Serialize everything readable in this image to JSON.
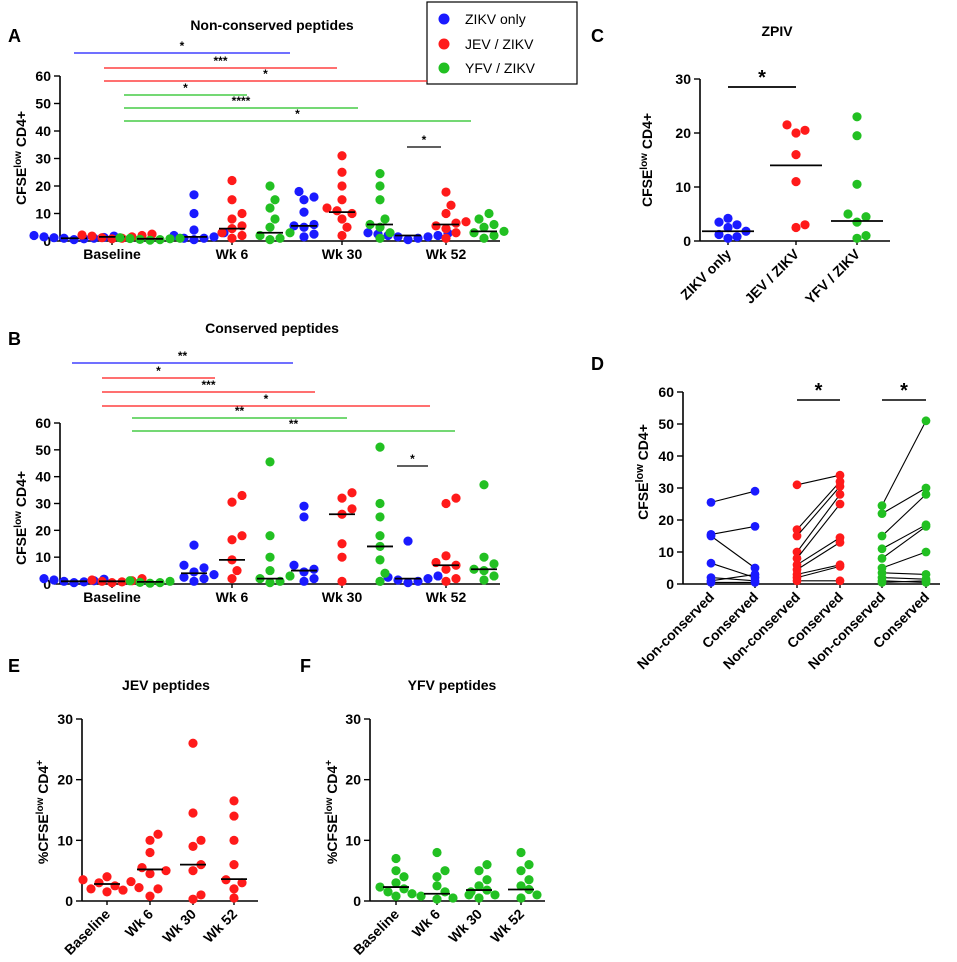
{
  "colors": {
    "ZIKV": "#1a1aff",
    "JEV": "#ff1a1a",
    "YFV": "#22c022",
    "black": "#000000"
  },
  "legend": {
    "items": [
      {
        "key": "ZIKV",
        "label": "ZIKV only"
      },
      {
        "key": "JEV",
        "label": "JEV / ZIKV"
      },
      {
        "key": "YFV",
        "label": "YFV / ZIKV"
      }
    ]
  },
  "panels": {
    "A": {
      "letter": "A",
      "title": "Non-conserved peptides",
      "ylabel_pre": "CFSE",
      "ylabel_sup": "low",
      "ylabel_post": " CD4+"
    },
    "B": {
      "letter": "B",
      "title": "Conserved peptides",
      "ylabel_pre": "CFSE",
      "ylabel_sup": "low",
      "ylabel_post": " CD4+"
    },
    "C": {
      "letter": "C",
      "title": "ZPIV",
      "ylabel_pre": "CFSE",
      "ylabel_sup": "low",
      "ylabel_post": " CD4+"
    },
    "D": {
      "letter": "D",
      "title": "",
      "ylabel_pre": "CFSE",
      "ylabel_sup": "low",
      "ylabel_post": " CD4+"
    },
    "E": {
      "letter": "E",
      "title": "JEV peptides",
      "ylabel_pre": "%CFSE",
      "ylabel_sup": "low",
      "ylabel_post": " CD4",
      "ylabel_sup2": "+"
    },
    "F": {
      "letter": "F",
      "title": "YFV peptides",
      "ylabel_pre": "%CFSE",
      "ylabel_sup": "low",
      "ylabel_post": " CD4",
      "ylabel_sup2": "+"
    }
  },
  "chart_data": [
    {
      "id": "A",
      "type": "scatter",
      "title": "Non-conserved peptides",
      "ylabel": "CFSElow CD4+",
      "ylim": [
        0,
        60
      ],
      "yticks": [
        0,
        10,
        20,
        30,
        40,
        50,
        60
      ],
      "categories": [
        "Baseline",
        "Wk 6",
        "Wk 30",
        "Wk 52"
      ],
      "series": [
        {
          "name": "ZIKV only",
          "key": "ZIKV",
          "medians": [
            1.0,
            1.5,
            5.5,
            2.0
          ],
          "values": [
            [
              0.5,
              1.0,
              1.2,
              1.5,
              2.0,
              0.8,
              1.8,
              1.0,
              1.3
            ],
            [
              0.5,
              1.0,
              1.5,
              2.0,
              3.0,
              4.0,
              1.0,
              10.0,
              16.8
            ],
            [
              1.5,
              2.5,
              5.0,
              5.5,
              10.5,
              15.0,
              16.0,
              18.0,
              6.0
            ],
            [
              0.5,
              1.0,
              1.5,
              2.0,
              2.5,
              3.0,
              1.5,
              2.0,
              2.8
            ]
          ]
        },
        {
          "name": "JEV / ZIKV",
          "key": "JEV",
          "medians": [
            1.5,
            4.5,
            10.5,
            6.0
          ],
          "values": [
            [
              0.8,
              1.2,
              1.5,
              2.0,
              2.5,
              1.0,
              1.8,
              2.2
            ],
            [
              1.0,
              2.0,
              3.0,
              4.5,
              5.5,
              8.0,
              10.0,
              15.0,
              22.0
            ],
            [
              2.0,
              5.0,
              8.0,
              10.0,
              11.0,
              12.0,
              15.0,
              20.0,
              25.0,
              31.0
            ],
            [
              1.0,
              3.0,
              4.5,
              5.5,
              6.5,
              7.0,
              10.0,
              13.0,
              17.8
            ]
          ]
        },
        {
          "name": "YFV / ZIKV",
          "key": "YFV",
          "medians": [
            0.8,
            3.0,
            6.0,
            3.5
          ],
          "values": [
            [
              0.3,
              0.6,
              0.8,
              1.0,
              1.2,
              0.5,
              0.9
            ],
            [
              0.5,
              1.0,
              2.0,
              3.0,
              5.0,
              8.0,
              12.0,
              15.0,
              20.0
            ],
            [
              1.0,
              3.0,
              5.0,
              6.0,
              8.0,
              15.0,
              20.0,
              24.5
            ],
            [
              1.0,
              2.0,
              3.0,
              3.5,
              5.0,
              6.0,
              8.0,
              10.0
            ]
          ]
        }
      ],
      "significance": [
        {
          "key": "ZIKV",
          "label": "*"
        },
        {
          "key": "JEV",
          "label": "***"
        },
        {
          "key": "JEV",
          "label": "*"
        },
        {
          "key": "YFV",
          "label": "*"
        },
        {
          "key": "YFV",
          "label": "****"
        },
        {
          "key": "YFV",
          "label": "*"
        },
        {
          "key": "black",
          "label": "*"
        }
      ]
    },
    {
      "id": "B",
      "type": "scatter",
      "title": "Conserved peptides",
      "ylabel": "CFSElow CD4+",
      "ylim": [
        0,
        60
      ],
      "yticks": [
        0,
        10,
        20,
        30,
        40,
        50,
        60
      ],
      "categories": [
        "Baseline",
        "Wk 6",
        "Wk 30",
        "Wk 52"
      ],
      "series": [
        {
          "name": "ZIKV only",
          "key": "ZIKV",
          "medians": [
            1.0,
            4.0,
            5.0,
            2.0
          ],
          "values": [
            [
              0.5,
              1.0,
              1.5,
              2.0,
              0.8,
              1.2,
              1.8
            ],
            [
              1.0,
              2.0,
              3.5,
              4.5,
              6.0,
              7.0,
              14.5,
              2.5
            ],
            [
              1.0,
              2.0,
              4.5,
              5.5,
              7.0,
              25.0,
              29.0
            ],
            [
              0.5,
              1.0,
              1.5,
              2.0,
              2.5,
              16.0,
              3.0
            ]
          ]
        },
        {
          "name": "JEV / ZIKV",
          "key": "JEV",
          "medians": [
            1.0,
            9.0,
            26.0,
            7.0
          ],
          "values": [
            [
              0.5,
              1.0,
              1.5,
              2.0,
              0.8,
              1.2
            ],
            [
              2.0,
              5.0,
              9.0,
              16.5,
              18.0,
              30.5,
              33.0
            ],
            [
              1.0,
              10.0,
              15.0,
              26.0,
              28.0,
              32.0,
              34.0
            ],
            [
              1.0,
              2.0,
              5.5,
              7.0,
              8.0,
              10.5,
              30.0,
              32.0
            ]
          ]
        },
        {
          "name": "YFV / ZIKV",
          "key": "YFV",
          "medians": [
            0.8,
            2.0,
            14.0,
            5.5
          ],
          "values": [
            [
              0.3,
              0.6,
              1.0,
              1.2,
              0.5
            ],
            [
              0.5,
              1.0,
              2.0,
              3.0,
              5.0,
              10.0,
              18.0,
              45.5
            ],
            [
              1.0,
              4.0,
              9.0,
              14.0,
              18.0,
              25.0,
              30.0,
              51.0
            ],
            [
              1.5,
              3.0,
              5.0,
              5.5,
              7.5,
              10.0,
              37.0
            ]
          ]
        }
      ],
      "significance": [
        {
          "key": "ZIKV",
          "label": "**"
        },
        {
          "key": "JEV",
          "label": "*"
        },
        {
          "key": "JEV",
          "label": "***"
        },
        {
          "key": "JEV",
          "label": "*"
        },
        {
          "key": "YFV",
          "label": "**"
        },
        {
          "key": "YFV",
          "label": "**"
        },
        {
          "key": "black",
          "label": "*"
        }
      ]
    },
    {
      "id": "C",
      "type": "scatter",
      "title": "ZPIV",
      "ylabel": "CFSElow CD4+",
      "ylim": [
        0,
        30
      ],
      "yticks": [
        0,
        10,
        20,
        30
      ],
      "categories": [
        "ZIKV only",
        "JEV / ZIKV",
        "YFV / ZIKV"
      ],
      "series": [
        {
          "name": "ZIKV only",
          "key": "ZIKV",
          "median": 1.8,
          "values": [
            0.5,
            1.2,
            1.8,
            2.5,
            3.5,
            4.2,
            0.8,
            3.0
          ]
        },
        {
          "name": "JEV / ZIKV",
          "key": "JEV",
          "median": 14.0,
          "values": [
            2.5,
            3.0,
            11.0,
            16.0,
            20.0,
            21.5,
            20.5
          ]
        },
        {
          "name": "YFV / ZIKV",
          "key": "YFV",
          "median": 3.7,
          "values": [
            0.5,
            1.0,
            3.5,
            4.5,
            5.0,
            10.5,
            19.5,
            23.0
          ]
        }
      ],
      "significance": [
        {
          "key": "black",
          "label": "*"
        }
      ]
    },
    {
      "id": "D",
      "type": "paired",
      "ylabel": "CFSElow CD4+",
      "ylim": [
        0,
        60
      ],
      "yticks": [
        0,
        10,
        20,
        30,
        40,
        50,
        60
      ],
      "categories": [
        "Non-conserved",
        "Conserved",
        "Non-conserved",
        "Conserved",
        "Non-conserved",
        "Conserved"
      ],
      "groups": [
        {
          "key": "ZIKV",
          "pairs": [
            [
              25.5,
              29.0
            ],
            [
              15.5,
              18.0
            ],
            [
              15.0,
              5.0
            ],
            [
              6.5,
              2.0
            ],
            [
              2.0,
              1.0
            ],
            [
              1.0,
              3.0
            ],
            [
              0.5,
              0.5
            ]
          ]
        },
        {
          "key": "JEV",
          "pairs": [
            [
              31.0,
              34.0
            ],
            [
              17.0,
              32.0
            ],
            [
              15.0,
              30.5
            ],
            [
              10.0,
              28.0
            ],
            [
              8.0,
              25.0
            ],
            [
              6.0,
              14.5
            ],
            [
              4.5,
              13.0
            ],
            [
              3.0,
              6.0
            ],
            [
              2.0,
              5.5
            ],
            [
              1.0,
              1.0
            ]
          ]
        },
        {
          "key": "YFV",
          "pairs": [
            [
              24.5,
              51.0
            ],
            [
              22.0,
              30.0
            ],
            [
              15.0,
              28.0
            ],
            [
              11.0,
              18.5
            ],
            [
              8.0,
              18.0
            ],
            [
              5.0,
              10.0
            ],
            [
              3.5,
              3.0
            ],
            [
              2.0,
              1.5
            ],
            [
              1.0,
              0.5
            ],
            [
              0.5,
              1.0
            ]
          ]
        }
      ],
      "significance": [
        {
          "key": "black",
          "label": "*"
        },
        {
          "key": "black",
          "label": "*"
        }
      ]
    },
    {
      "id": "E",
      "type": "scatter",
      "title": "JEV peptides",
      "ylabel": "%CFSElow CD4+",
      "ylim": [
        0,
        30
      ],
      "yticks": [
        0,
        10,
        20,
        30
      ],
      "categories": [
        "Baseline",
        "Wk 6",
        "Wk 30",
        "Wk 52"
      ],
      "series": [
        {
          "name": "JEV / ZIKV",
          "key": "JEV",
          "medians": [
            2.8,
            5.2,
            6.0,
            3.6
          ],
          "values": [
            [
              1.5,
              2.0,
              2.5,
              3.0,
              3.5,
              4.0,
              2.2,
              3.2,
              1.8
            ],
            [
              0.8,
              2.0,
              4.5,
              5.0,
              8.0,
              10.0,
              11.0,
              5.5
            ],
            [
              0.3,
              1.0,
              5.0,
              6.0,
              9.0,
              10.0,
              14.5,
              26.0
            ],
            [
              0.5,
              2.0,
              3.0,
              3.5,
              6.0,
              10.0,
              14.0,
              16.5
            ]
          ]
        }
      ]
    },
    {
      "id": "F",
      "type": "scatter",
      "title": "YFV peptides",
      "ylabel": "%CFSElow CD4+",
      "ylim": [
        0,
        30
      ],
      "yticks": [
        0,
        10,
        20,
        30
      ],
      "categories": [
        "Baseline",
        "Wk 6",
        "Wk 30",
        "Wk 52"
      ],
      "series": [
        {
          "name": "YFV / ZIKV",
          "key": "YFV",
          "medians": [
            2.3,
            1.2,
            1.8,
            1.9
          ],
          "values": [
            [
              0.8,
              1.5,
              2.0,
              2.3,
              3.0,
              4.0,
              5.0,
              7.0,
              1.2
            ],
            [
              0.3,
              0.5,
              1.0,
              1.5,
              2.5,
              4.0,
              5.0,
              8.0,
              0.8
            ],
            [
              0.5,
              1.0,
              1.8,
              2.5,
              3.5,
              5.0,
              6.0,
              1.5
            ],
            [
              0.5,
              1.0,
              1.9,
              3.5,
              5.0,
              6.0,
              8.0,
              2.5
            ]
          ]
        }
      ]
    }
  ]
}
